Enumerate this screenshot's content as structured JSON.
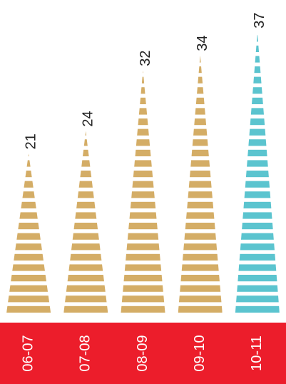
{
  "chart_data": {
    "type": "bar",
    "categories": [
      "06-07",
      "07-08",
      "08-09",
      "09-10",
      "10-11"
    ],
    "values": [
      21,
      24,
      32,
      34,
      37
    ],
    "highlight_index": 4,
    "colors": {
      "bar": "#D4AD66",
      "highlight_bar": "#5BC4CF",
      "category_band": "#EC1D2B",
      "category_text": "#FFFFFF",
      "value_text": "#222222",
      "background": "#FFFFFF"
    }
  }
}
